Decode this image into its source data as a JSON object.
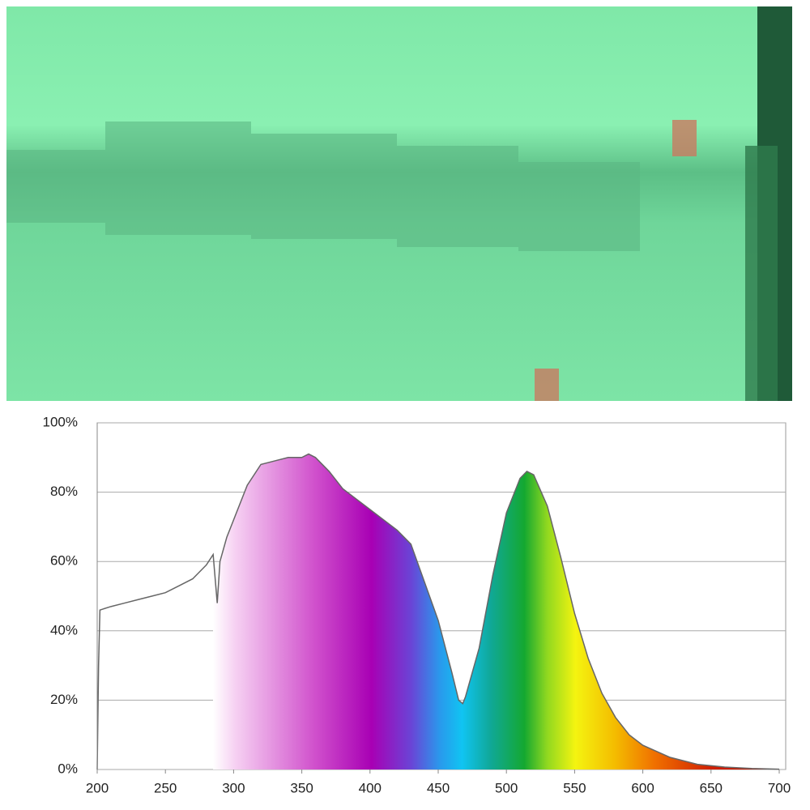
{
  "chart_data": {
    "type": "area",
    "x": [
      200,
      201,
      202,
      210,
      220,
      230,
      240,
      250,
      260,
      270,
      280,
      285,
      288,
      290,
      295,
      300,
      310,
      320,
      330,
      340,
      350,
      355,
      360,
      370,
      380,
      390,
      400,
      410,
      420,
      430,
      440,
      450,
      460,
      465,
      468,
      470,
      480,
      490,
      500,
      510,
      515,
      520,
      530,
      540,
      550,
      560,
      570,
      580,
      590,
      600,
      620,
      640,
      660,
      680,
      700
    ],
    "series": [
      {
        "values": [
          0,
          30,
          46,
          47,
          48,
          49,
          50,
          51,
          53,
          55,
          59,
          62,
          48,
          60,
          67,
          72,
          82,
          88,
          89,
          90,
          90,
          91,
          90,
          86,
          81,
          78,
          75,
          72,
          69,
          65,
          54,
          43,
          28,
          20,
          19,
          21,
          35,
          56,
          74,
          84,
          86,
          85,
          76,
          61,
          45,
          32,
          22,
          15,
          10,
          7,
          3.5,
          1.5,
          0.7,
          0.3,
          0.1
        ]
      }
    ],
    "xlim": [
      200,
      700
    ],
    "ylim": [
      0,
      100
    ],
    "xticks": [
      200,
      250,
      300,
      350,
      400,
      450,
      500,
      550,
      600,
      650,
      700
    ],
    "yticks": [
      {
        "value": 0,
        "label": "0%"
      },
      {
        "value": 20,
        "label": "20%"
      },
      {
        "value": 40,
        "label": "40%"
      },
      {
        "value": 60,
        "label": "60%"
      },
      {
        "value": 80,
        "label": "80%"
      },
      {
        "value": 100,
        "label": "100%"
      }
    ],
    "grid": true
  }
}
